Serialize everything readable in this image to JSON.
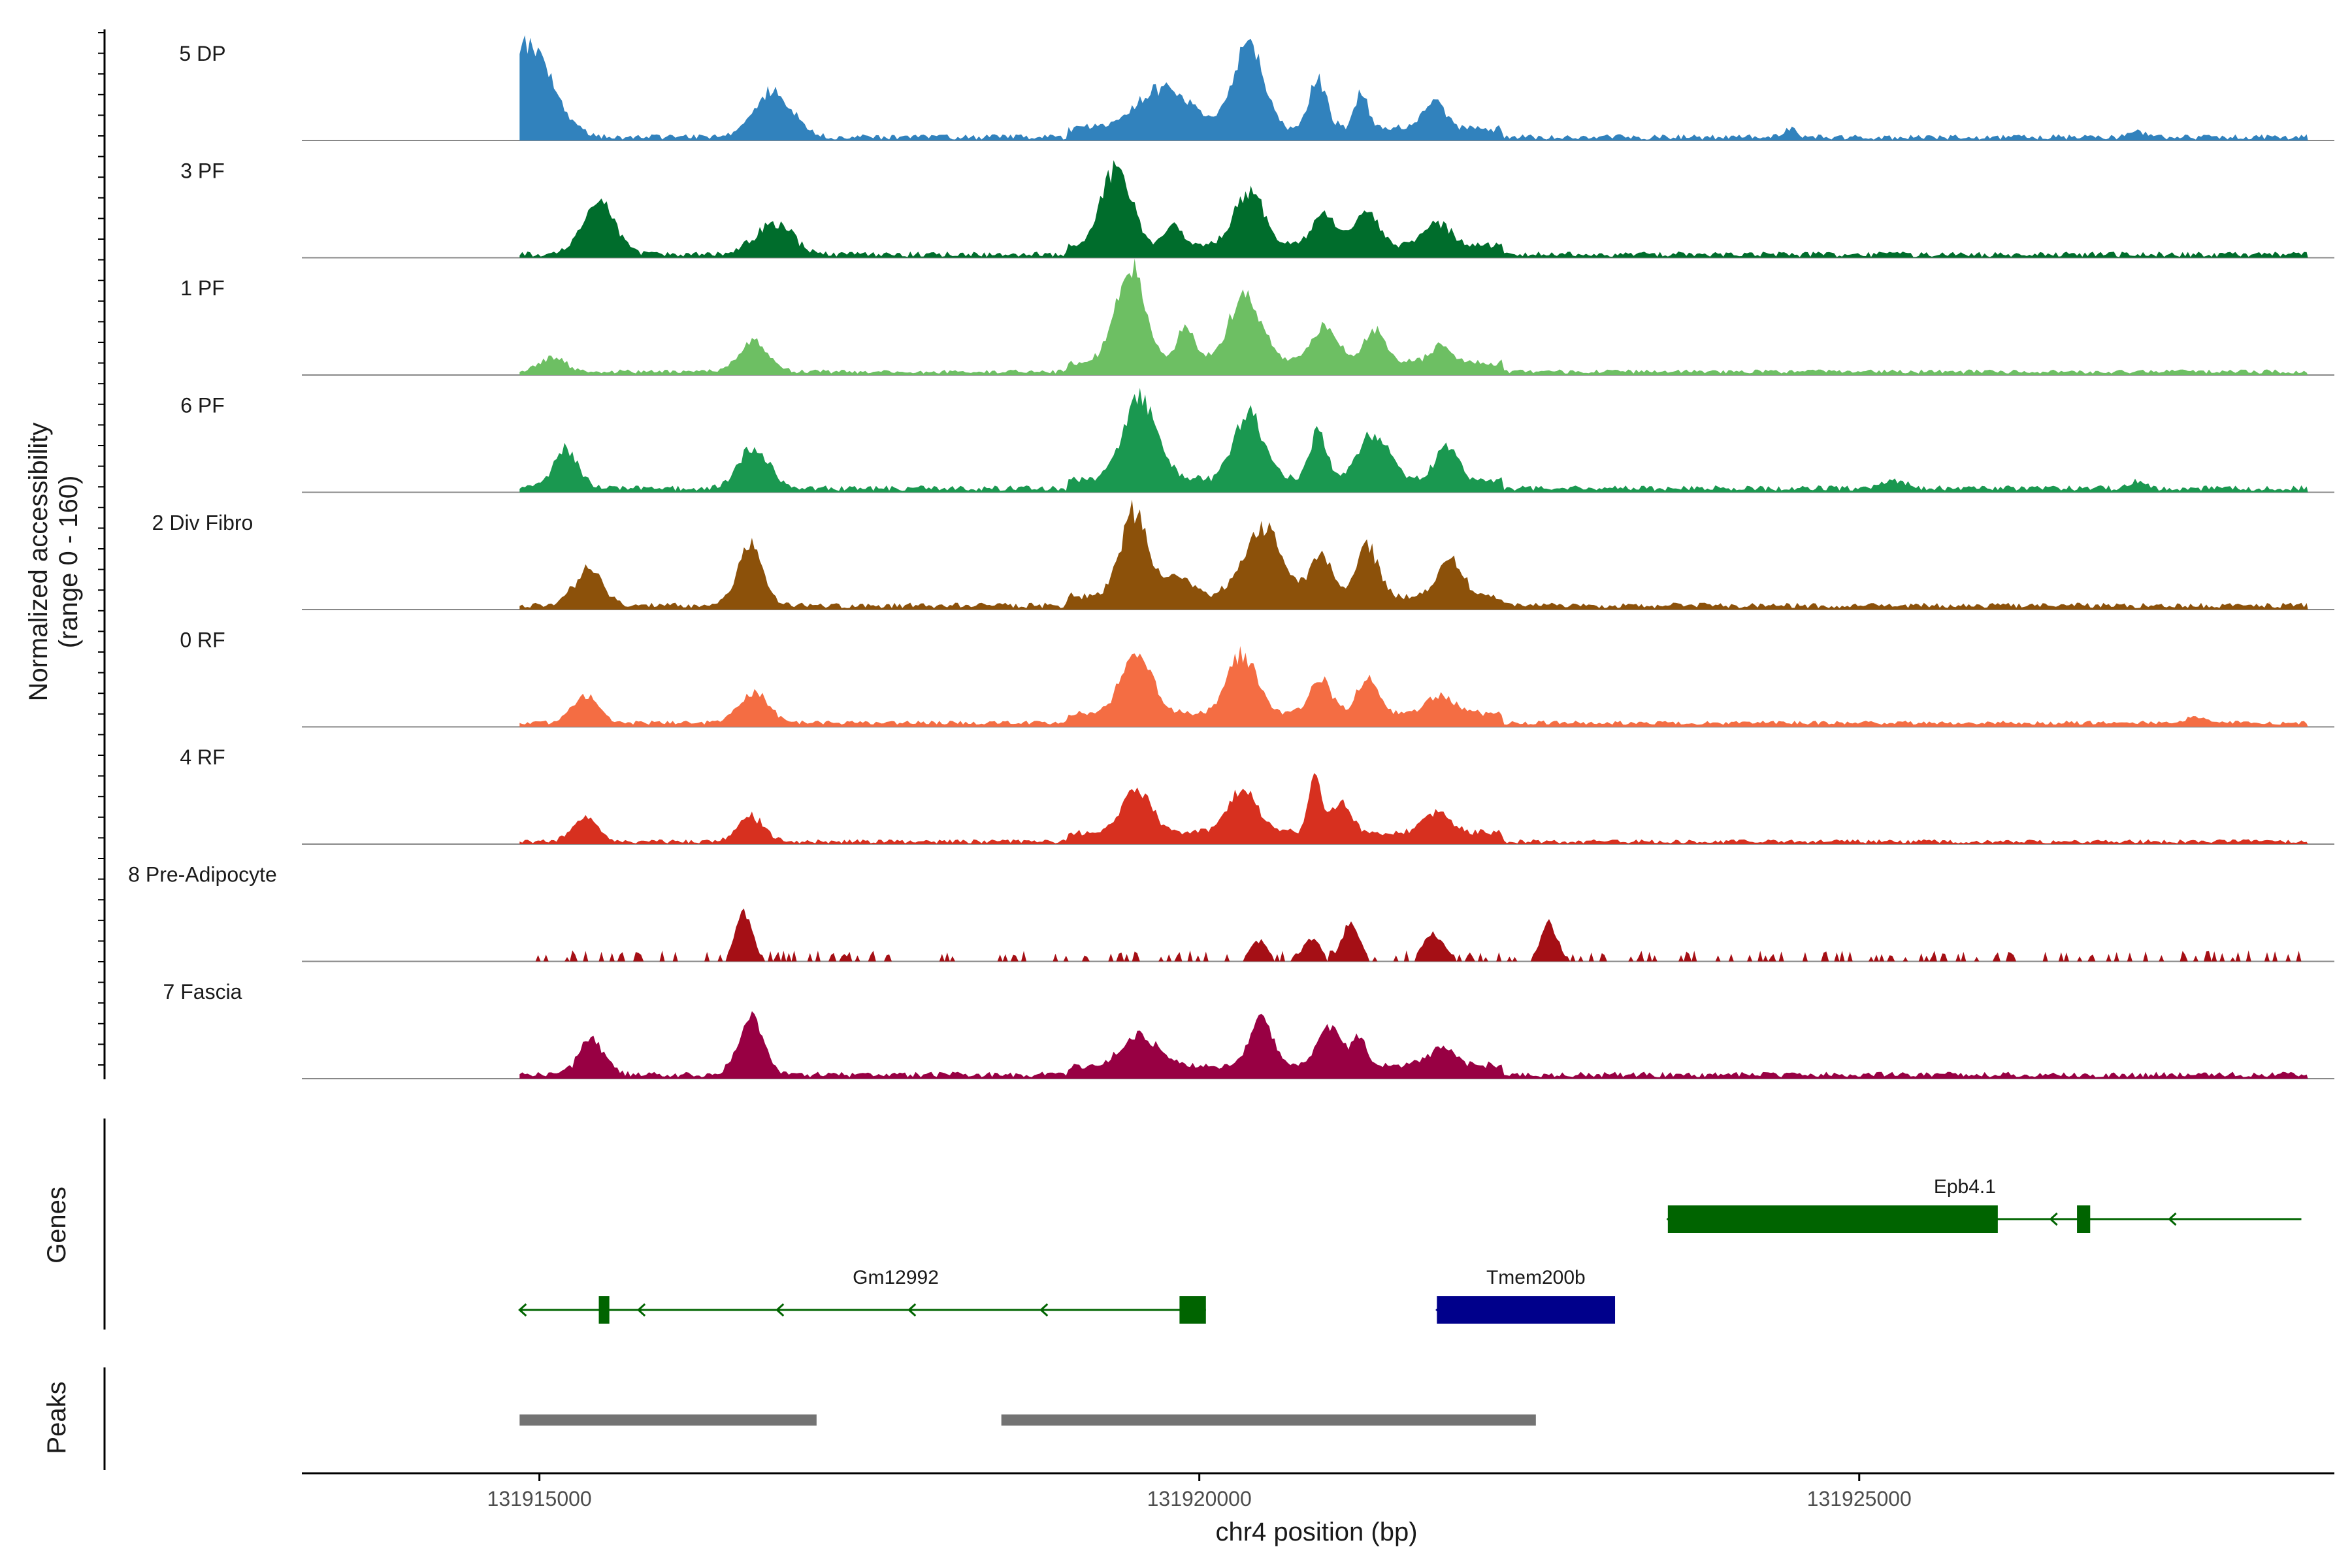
{
  "chart_data": {
    "type": "area",
    "title": "",
    "ylabel_line1": "Normalized accessibility",
    "ylabel_line2": "(range 0 - 160)",
    "xlabel": "chr4 position (bp)",
    "xlim": [
      131913200,
      131928600
    ],
    "ylim": [
      0,
      160
    ],
    "x_ticks": [
      131915000,
      131920000,
      131925000
    ],
    "x_tick_labels": [
      "131915000",
      "131920000",
      "131925000"
    ],
    "tracks": [
      {
        "name": "5 DP",
        "color": "#3182bd",
        "peaks": [
          [
            131914650,
            131915200,
            135,
            230
          ],
          [
            131916550,
            131917000,
            65,
            170
          ],
          [
            131919400,
            131920050,
            55,
            260
          ],
          [
            131920200,
            131920550,
            128,
            230
          ],
          [
            131920800,
            131921000,
            70,
            190
          ],
          [
            131921150,
            131921300,
            55,
            180
          ],
          [
            131921650,
            131921900,
            40,
            200
          ],
          [
            131924400,
            131924550,
            12,
            110
          ],
          [
            131927000,
            131927200,
            8,
            110
          ]
        ],
        "base": 5,
        "noise": 4
      },
      {
        "name": "3 PF",
        "color": "#006d2c",
        "peaks": [
          [
            131915250,
            131915650,
            75,
            170
          ],
          [
            131916550,
            131917000,
            45,
            230
          ],
          [
            131919200,
            131919550,
            115,
            260
          ],
          [
            131919700,
            131919900,
            30,
            120
          ],
          [
            131920200,
            131920550,
            75,
            200
          ],
          [
            131920800,
            131921100,
            45,
            200
          ],
          [
            131921150,
            131921400,
            50,
            200
          ],
          [
            131921650,
            131921950,
            35,
            200
          ]
        ],
        "base": 5,
        "noise": 4
      },
      {
        "name": "1 PF",
        "color": "#6dbf63",
        "peaks": [
          [
            131914950,
            131915250,
            22,
            160
          ],
          [
            131916450,
            131916800,
            45,
            220
          ],
          [
            131919300,
            131919650,
            140,
            270
          ],
          [
            131919800,
            131920000,
            50,
            140
          ],
          [
            131920150,
            131920550,
            90,
            220
          ],
          [
            131920800,
            131921100,
            55,
            200
          ],
          [
            131921200,
            131921450,
            50,
            200
          ],
          [
            131921700,
            131921950,
            25,
            200
          ]
        ],
        "base": 5,
        "noise": 3
      },
      {
        "name": "6 PF",
        "color": "#1a9850",
        "peaks": [
          [
            131915050,
            131915350,
            55,
            170
          ],
          [
            131916450,
            131916800,
            60,
            200
          ],
          [
            131919350,
            131919750,
            120,
            280
          ],
          [
            131920200,
            131920550,
            95,
            250
          ],
          [
            131920800,
            131921000,
            70,
            200
          ],
          [
            131921150,
            131921500,
            70,
            220
          ],
          [
            131921750,
            131922000,
            50,
            200
          ],
          [
            131925150,
            131925400,
            12,
            160
          ],
          [
            131927000,
            131927200,
            10,
            120
          ]
        ],
        "base": 6,
        "noise": 4
      },
      {
        "name": "2 Div Fibro",
        "color": "#8c510a",
        "peaks": [
          [
            131915200,
            131915550,
            50,
            170
          ],
          [
            131916450,
            131916750,
            85,
            190
          ],
          [
            131919350,
            131919650,
            125,
            250
          ],
          [
            131919650,
            131920000,
            30,
            140
          ],
          [
            131920250,
            131920700,
            100,
            320
          ],
          [
            131920800,
            131921050,
            65,
            200
          ],
          [
            131921150,
            131921400,
            75,
            200
          ],
          [
            131921750,
            131922050,
            55,
            220
          ]
        ],
        "base": 6,
        "noise": 4
      },
      {
        "name": "0 RF",
        "color": "#f46d43",
        "peaks": [
          [
            131915200,
            131915500,
            40,
            150
          ],
          [
            131916450,
            131916800,
            45,
            190
          ],
          [
            131919350,
            131919700,
            90,
            240
          ],
          [
            131920150,
            131920500,
            85,
            220
          ],
          [
            131920800,
            131921050,
            50,
            200
          ],
          [
            131921150,
            131921400,
            50,
            200
          ],
          [
            131921650,
            131922000,
            25,
            200
          ],
          [
            131927450,
            131927650,
            10,
            110
          ]
        ],
        "base": 6,
        "noise": 3
      },
      {
        "name": "4 RF",
        "color": "#d7301f",
        "peaks": [
          [
            131915200,
            131915500,
            35,
            150
          ],
          [
            131916450,
            131916750,
            38,
            170
          ],
          [
            131919350,
            131919700,
            60,
            240
          ],
          [
            131920150,
            131920500,
            60,
            220
          ],
          [
            131920800,
            131920950,
            85,
            130
          ],
          [
            131920950,
            131921200,
            40,
            200
          ],
          [
            131921650,
            131921950,
            30,
            220
          ]
        ],
        "base": 4,
        "noise": 3
      },
      {
        "name": "8 Pre-Adipocyte",
        "color": "#a50f15",
        "peaks": [
          [
            131916450,
            131916650,
            70,
            140
          ],
          [
            131920750,
            131920950,
            35,
            130
          ],
          [
            131921050,
            131921250,
            60,
            130
          ],
          [
            131922550,
            131922750,
            55,
            150
          ],
          [
            131921650,
            131921900,
            40,
            160
          ],
          [
            131920350,
            131920550,
            30,
            160
          ]
        ],
        "base": 0,
        "noise": 0,
        "sparse": true
      },
      {
        "name": "7 Fascia",
        "color": "#980043",
        "peaks": [
          [
            131915250,
            131915550,
            50,
            170
          ],
          [
            131916450,
            131916750,
            82,
            180
          ],
          [
            131919350,
            131919750,
            45,
            240
          ],
          [
            131920350,
            131920600,
            75,
            250
          ],
          [
            131920850,
            131921100,
            60,
            200
          ],
          [
            131921100,
            131921300,
            40,
            150
          ],
          [
            131921650,
            131922000,
            25,
            200
          ]
        ],
        "base": 6,
        "noise": 4
      }
    ],
    "genes": [
      {
        "name": "Gm12992",
        "strand": "-",
        "color": "#006400",
        "start": 131914850,
        "end": 131920050,
        "row": 2,
        "exons": [
          [
            131915450,
            131915530
          ],
          [
            131919850,
            131920050
          ]
        ],
        "arrow_xs": [
          131915750,
          131916800,
          131917800,
          131918800
        ],
        "label_x": 131917700
      },
      {
        "name": "Tmem200b",
        "strand": "-",
        "color": "#00008b",
        "start": 131921800,
        "end": 131923150,
        "row": 2,
        "exons": [
          [
            131921800,
            131923150
          ]
        ],
        "arrow_xs": [],
        "label_x": 131922550
      },
      {
        "name": "Epb4.1",
        "strand": "-",
        "color": "#006400",
        "start": 131923550,
        "end": 131928350,
        "row": 1,
        "exons": [
          [
            131923550,
            131926050
          ],
          [
            131926650,
            131926750
          ]
        ],
        "arrow_xs": [
          131926450,
          131927350
        ],
        "label_x": 131925800
      }
    ],
    "peaks_track": [
      [
        131914850,
        131917100
      ],
      [
        131918500,
        131922550
      ]
    ],
    "panel_labels": {
      "genes": "Genes",
      "peaks": "Peaks"
    }
  }
}
